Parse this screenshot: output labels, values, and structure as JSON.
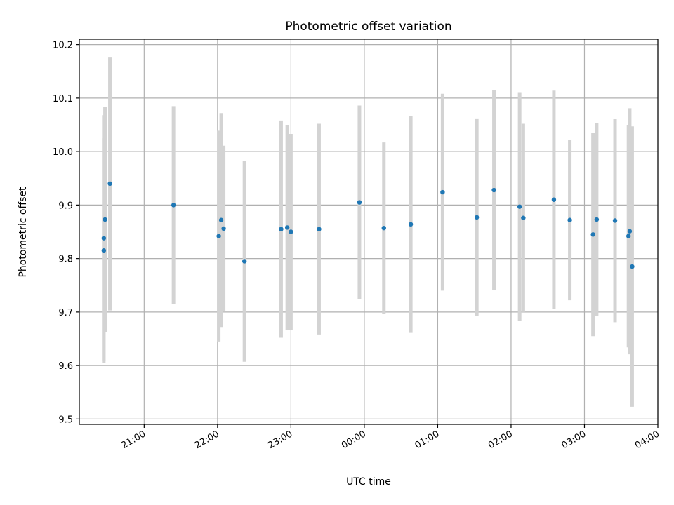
{
  "chart_data": {
    "type": "scatter",
    "title": "Photometric offset variation",
    "xlabel": "UTC time",
    "ylabel": "Photometric offset",
    "x_axis_kind": "time (UTC), spanning midnight",
    "xlim": [
      "20:07",
      "04:00"
    ],
    "ylim": [
      9.49,
      10.21
    ],
    "x_ticks": [
      "21:00",
      "22:00",
      "23:00",
      "00:00",
      "01:00",
      "02:00",
      "03:00",
      "04:00"
    ],
    "y_ticks": [
      "9.5",
      "9.6",
      "9.7",
      "9.8",
      "9.9",
      "10.0",
      "10.1",
      "10.2"
    ],
    "grid": true,
    "error_bars": true,
    "colors": {
      "point": "#1f77b4",
      "errorbar": "#d3d3d3",
      "grid": "#b0b0b0"
    },
    "points": [
      {
        "x": "20:27",
        "y": 9.815,
        "err": 0.21
      },
      {
        "x": "20:27",
        "y": 9.838,
        "err": 0.23
      },
      {
        "x": "20:28",
        "y": 9.873,
        "err": 0.21
      },
      {
        "x": "20:32",
        "y": 9.94,
        "err": 0.237
      },
      {
        "x": "21:24",
        "y": 9.9,
        "err": 0.185
      },
      {
        "x": "22:01",
        "y": 9.842,
        "err": 0.197
      },
      {
        "x": "22:03",
        "y": 9.872,
        "err": 0.2
      },
      {
        "x": "22:05",
        "y": 9.856,
        "err": 0.155
      },
      {
        "x": "22:22",
        "y": 9.795,
        "err": 0.188
      },
      {
        "x": "22:52",
        "y": 9.855,
        "err": 0.203
      },
      {
        "x": "22:57",
        "y": 9.858,
        "err": 0.192
      },
      {
        "x": "23:00",
        "y": 9.85,
        "err": 0.183
      },
      {
        "x": "23:23",
        "y": 9.855,
        "err": 0.197
      },
      {
        "x": "23:56",
        "y": 9.905,
        "err": 0.181
      },
      {
        "x": "00:16",
        "y": 9.857,
        "err": 0.16
      },
      {
        "x": "00:38",
        "y": 9.864,
        "err": 0.203
      },
      {
        "x": "01:04",
        "y": 9.924,
        "err": 0.184
      },
      {
        "x": "01:32",
        "y": 9.877,
        "err": 0.185
      },
      {
        "x": "01:46",
        "y": 9.928,
        "err": 0.187
      },
      {
        "x": "02:07",
        "y": 9.897,
        "err": 0.214
      },
      {
        "x": "02:10",
        "y": 9.876,
        "err": 0.176
      },
      {
        "x": "02:35",
        "y": 9.91,
        "err": 0.204
      },
      {
        "x": "02:48",
        "y": 9.872,
        "err": 0.15
      },
      {
        "x": "03:07",
        "y": 9.845,
        "err": 0.19
      },
      {
        "x": "03:10",
        "y": 9.873,
        "err": 0.181
      },
      {
        "x": "03:25",
        "y": 9.871,
        "err": 0.19
      },
      {
        "x": "03:36",
        "y": 9.842,
        "err": 0.208
      },
      {
        "x": "03:37",
        "y": 9.851,
        "err": 0.23
      },
      {
        "x": "03:39",
        "y": 9.785,
        "err": 0.262
      }
    ]
  }
}
